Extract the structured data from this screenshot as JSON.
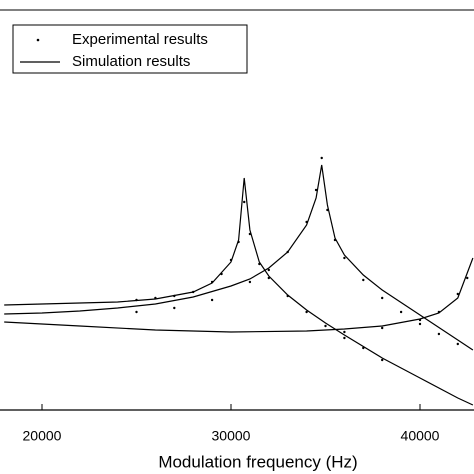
{
  "chart_data": {
    "type": "line",
    "xlabel": "Modulation frequency (Hz)",
    "xlim": [
      17778,
      42857
    ],
    "ylim": [
      0,
      100
    ],
    "xticks": [
      20000,
      30000,
      40000
    ],
    "legend": "top-left",
    "series": [
      {
        "name": "Experimental results",
        "type": "scatter",
        "color": "#000000",
        "x": [
          25000,
          26000,
          27000,
          28000,
          29000,
          29500,
          30000,
          30400,
          30700,
          31000,
          31500,
          32000,
          33000,
          34000,
          35000,
          36000,
          37000,
          38000,
          25000,
          27000,
          29000,
          31000,
          32000,
          33000,
          34000,
          34500,
          34800,
          35100,
          35500,
          36000,
          37000,
          38000,
          39000,
          40000,
          41000,
          42000,
          36000,
          38000,
          40000,
          41000,
          42000,
          42500
        ],
        "values": [
          27.5,
          28,
          28.5,
          29.5,
          32,
          34,
          37.5,
          42,
          52,
          44,
          36.5,
          33,
          28.5,
          24.5,
          21,
          18,
          15.5,
          12.5,
          24.5,
          25.5,
          27.5,
          32,
          35,
          39.5,
          47,
          55,
          63,
          50,
          42.5,
          38,
          32.5,
          28,
          24.5,
          21.5,
          19,
          16.5,
          19.5,
          20.5,
          22.5,
          24.5,
          29,
          33
        ]
      },
      {
        "name": "Simulation results",
        "type": "line",
        "color": "#000000",
        "x": [
          18000,
          20000,
          22000,
          24000,
          26000,
          28000,
          29000,
          30000,
          30400,
          30700,
          31000,
          31500,
          32000,
          33000,
          34000,
          35000,
          36000,
          38000,
          40000,
          42000,
          42800
        ],
        "values": [
          26.25,
          26.5,
          26.75,
          27,
          27.75,
          29.5,
          31.75,
          37,
          42.5,
          58,
          45,
          37,
          33.5,
          28.75,
          25,
          21.75,
          18.75,
          13,
          8,
          3,
          1.25
        ]
      },
      {
        "type": "line",
        "color": "#000000",
        "x": [
          18000,
          20000,
          22000,
          24000,
          26000,
          28000,
          30000,
          31000,
          32000,
          33000,
          34000,
          34500,
          34800,
          35100,
          35500,
          36000,
          37000,
          38000,
          40000,
          42000,
          42800
        ],
        "values": [
          24,
          24.25,
          24.75,
          25.5,
          26.5,
          28.25,
          31,
          32.75,
          35.5,
          39.5,
          46.25,
          53,
          61.25,
          51.25,
          43,
          38.75,
          33.75,
          30,
          23.75,
          17.5,
          15
        ]
      },
      {
        "type": "line",
        "color": "#000000",
        "x": [
          18000,
          22000,
          26000,
          30000,
          34000,
          36000,
          38000,
          40000,
          41000,
          42000,
          42800
        ],
        "values": [
          22,
          21,
          20,
          19.5,
          19.75,
          20.25,
          21,
          22.75,
          24.25,
          28,
          38
        ]
      }
    ]
  }
}
